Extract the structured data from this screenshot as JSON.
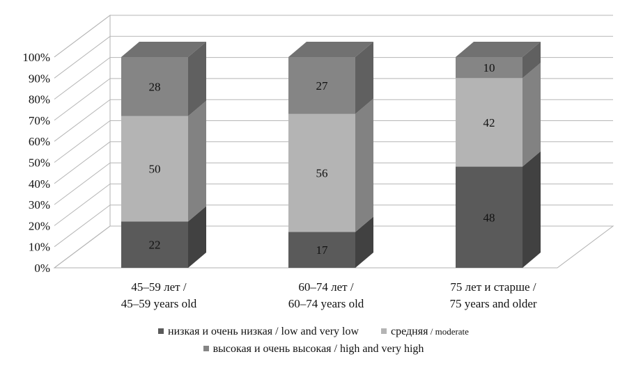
{
  "chart_data": {
    "type": "bar",
    "stacked": true,
    "three_d": true,
    "categories": [
      [
        "45–59 лет /",
        "45–59 years old"
      ],
      [
        "60–74 лет /",
        "60–74 years old"
      ],
      [
        "75 лет и старше /",
        "75 years and older"
      ]
    ],
    "series": [
      {
        "name": "низкая и очень низкая / low and very low",
        "values": [
          22,
          17,
          48
        ],
        "color": "#5a5a5a"
      },
      {
        "name": "средняя / moderate",
        "values": [
          50,
          56,
          42
        ],
        "color": "#b4b4b4"
      },
      {
        "name": "высокая и очень высокая / high and very high",
        "values": [
          28,
          27,
          10
        ],
        "color": "#858585"
      }
    ],
    "y_ticks": [
      "0%",
      "10%",
      "20%",
      "30%",
      "40%",
      "50%",
      "60%",
      "70%",
      "80%",
      "90%",
      "100%"
    ],
    "ylim": [
      0,
      100
    ],
    "grid": true,
    "legend_position": "bottom"
  },
  "legend": {
    "item1_main": "низкая и очень низкая / low and very low",
    "item2_main": "средняя",
    "item2_small": " / moderate",
    "item3_main": "высокая и очень высокая / high and very high"
  }
}
